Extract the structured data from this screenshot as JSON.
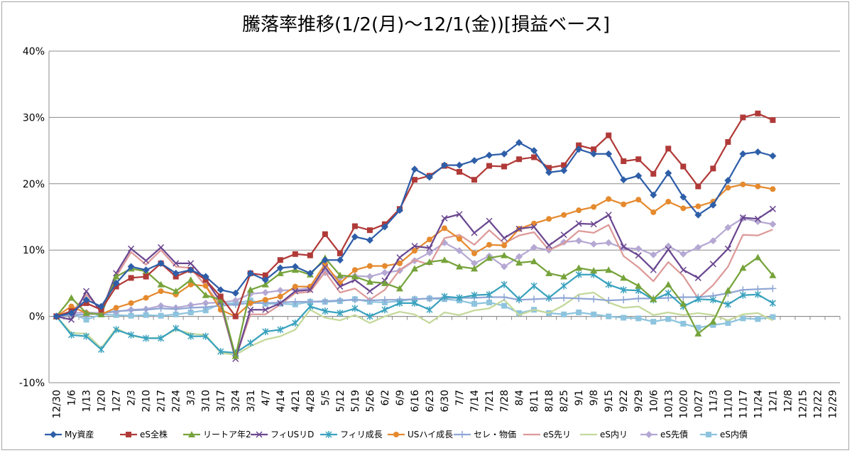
{
  "chart_data": {
    "type": "line",
    "title": "騰落率推移(1/2(月)～12/1(金))[損益ベース]",
    "xlabel": "",
    "ylabel": "",
    "ylim": [
      -10,
      40
    ],
    "yticks": [
      -10,
      0,
      10,
      20,
      30,
      40
    ],
    "ytick_labels": [
      "-10%",
      "0%",
      "10%",
      "20%",
      "30%",
      "40%"
    ],
    "grid": true,
    "legend_position": "bottom",
    "x_tick_labels": [
      "12/30",
      "1/6",
      "1/13",
      "1/20",
      "1/27",
      "2/3",
      "2/10",
      "2/17",
      "2/24",
      "3/3",
      "3/10",
      "3/17",
      "3/24",
      "3/31",
      "4/7",
      "4/14",
      "4/21",
      "4/28",
      "5/5",
      "5/12",
      "5/19",
      "5/26",
      "6/2",
      "6/9",
      "6/16",
      "6/23",
      "6/30",
      "7/7",
      "7/14",
      "7/21",
      "7/28",
      "8/4",
      "8/11",
      "8/18",
      "8/25",
      "9/1",
      "9/8",
      "9/15",
      "9/22",
      "9/29",
      "10/6",
      "10/13",
      "10/20",
      "10/27",
      "11/3",
      "11/10",
      "11/17",
      "11/24",
      "12/1",
      "12/8",
      "12/15",
      "12/22",
      "12/29"
    ],
    "series": [
      {
        "name": "My資産",
        "color": "#2e5ea8",
        "marker": "diamond",
        "values": [
          0,
          0.5,
          2.5,
          1.5,
          5,
          7.5,
          7,
          8,
          6.5,
          7,
          6,
          4,
          3.5,
          6.5,
          5.5,
          7.3,
          7.5,
          6.5,
          8.5,
          8.5,
          12,
          11.5,
          13.5,
          16,
          22.2,
          21,
          22.8,
          22.8,
          23.5,
          24.3,
          24.5,
          26.2,
          25,
          21.7,
          22,
          25.2,
          24.5,
          24.5,
          20.6,
          21.2,
          18.3,
          21.6,
          18,
          15.3,
          16.8,
          20.5,
          24.5,
          24.8,
          24.2
        ]
      },
      {
        "name": "eS全株",
        "color": "#b03a38",
        "marker": "square",
        "values": [
          0,
          0.8,
          2,
          1,
          4.5,
          5.8,
          6,
          8,
          6,
          7,
          5.5,
          3,
          0,
          6.5,
          6.2,
          8.5,
          9.4,
          9.2,
          12.4,
          9.5,
          13.6,
          13,
          13.9,
          16.2,
          20.6,
          21.2,
          22.7,
          21.8,
          20.6,
          22.7,
          22.6,
          23.7,
          24,
          22.4,
          22.8,
          25.8,
          25.2,
          27.3,
          23.4,
          23.7,
          21.5,
          25.3,
          22.6,
          19.6,
          22.3,
          26.3,
          30,
          30.6,
          29.6
        ]
      },
      {
        "name": "リートア年2",
        "color": "#76a33b",
        "marker": "triangle",
        "values": [
          0,
          2.8,
          0.5,
          0.3,
          6,
          7.2,
          6.8,
          4.8,
          3.8,
          5.5,
          3.2,
          2.5,
          -6,
          4,
          4.8,
          6.5,
          7,
          6.3,
          8.8,
          6.2,
          6,
          5.2,
          5,
          4.2,
          7.2,
          8.2,
          8.5,
          7.5,
          7.2,
          8.8,
          9.2,
          8.1,
          8.3,
          6.5,
          6,
          7.3,
          6.9,
          7,
          5.8,
          4.6,
          2.6,
          4.8,
          1.9,
          -2.6,
          -0.8,
          3.9,
          7.3,
          8.9,
          6.2
        ]
      },
      {
        "name": "フィUSリD",
        "color": "#6a4790",
        "marker": "x",
        "values": [
          0,
          -0.5,
          3.8,
          0.6,
          6.5,
          10.2,
          8.4,
          10.4,
          8,
          8,
          5.5,
          2.2,
          -6.4,
          1,
          1,
          2,
          3.8,
          4,
          7.4,
          4.5,
          5.5,
          3.8,
          5.4,
          8.9,
          10.6,
          10.3,
          14.8,
          15.4,
          12.6,
          14.4,
          11.8,
          13.2,
          13.5,
          10.7,
          12.3,
          14,
          13.9,
          15.3,
          10.5,
          9.2,
          7,
          10.1,
          7,
          5.8,
          7.9,
          10.2,
          14.9,
          14.7,
          16.2
        ]
      },
      {
        "name": "フィリ成長",
        "color": "#3aa2be",
        "marker": "asterisk",
        "values": [
          0,
          -2.8,
          -3,
          -5,
          -2,
          -2.8,
          -3.3,
          -3.3,
          -1.8,
          -3,
          -3,
          -5.3,
          -5.5,
          -4,
          -2.3,
          -2,
          -1,
          1.5,
          0.8,
          0.5,
          1.2,
          0,
          1,
          2,
          2,
          1,
          3,
          2.8,
          3.2,
          3.3,
          4.8,
          2.6,
          4.6,
          2.8,
          4.6,
          6.3,
          6.3,
          4.8,
          4,
          3.9,
          2.5,
          3.5,
          1.5,
          2.6,
          2.5,
          1.8,
          3.2,
          3.3,
          2
        ]
      },
      {
        "name": "USハイ成長",
        "color": "#e58a2e",
        "marker": "circle",
        "values": [
          0,
          1.5,
          0.5,
          0.3,
          1.3,
          2,
          2.8,
          3.8,
          3.3,
          4.8,
          4.6,
          1,
          0,
          2,
          2.5,
          3,
          4.5,
          4.5,
          7.9,
          5,
          7,
          7.6,
          7.6,
          8,
          9.9,
          11.6,
          13.3,
          11.7,
          9.5,
          10.8,
          10.7,
          13.2,
          14,
          14.7,
          15.3,
          16,
          16.5,
          17.7,
          16.9,
          17.6,
          15.7,
          17.3,
          16.3,
          16.6,
          17.3,
          19.4,
          19.9,
          19.6,
          19.2
        ]
      },
      {
        "name": "セレ・物価",
        "color": "#8fa6d4",
        "marker": "plus",
        "values": [
          0,
          0.2,
          0.3,
          0.4,
          0.8,
          0.9,
          1,
          1.2,
          1.1,
          1.3,
          1.4,
          1.6,
          1.8,
          2,
          2,
          2.1,
          2.2,
          2.2,
          2.3,
          2.4,
          2.5,
          2.4,
          2.5,
          2.5,
          2.6,
          2.7,
          2.8,
          2.8,
          2.8,
          2.9,
          2.9,
          2.5,
          2.6,
          2.7,
          2.8,
          2.7,
          2.6,
          2.4,
          2.5,
          2.7,
          2.7,
          2.8,
          2.9,
          2.9,
          3.1,
          3.5,
          4,
          4.1,
          4.2
        ]
      },
      {
        "name": "eS先リ",
        "color": "#dc9a98",
        "marker": "none",
        "values": [
          0,
          0.5,
          3.3,
          1,
          6,
          9.7,
          7.8,
          10,
          7.5,
          7.3,
          4.6,
          1.7,
          -6.3,
          0.3,
          0.3,
          1.8,
          3.5,
          3.7,
          6.7,
          3.6,
          4.2,
          2.5,
          4,
          7,
          8.5,
          7.8,
          11.8,
          12.3,
          10.8,
          13,
          11,
          12.2,
          12.7,
          10,
          11,
          12.9,
          12.6,
          13.8,
          9.1,
          7.4,
          5.3,
          8.2,
          6.1,
          2.7,
          4.7,
          7.5,
          12.3,
          12.2,
          13.1
        ]
      },
      {
        "name": "eS内リ",
        "color": "#c4d89a",
        "marker": "none",
        "values": [
          0,
          -2.5,
          -2.6,
          -4.8,
          -1.8,
          -2.9,
          -3.3,
          -3.2,
          -2,
          -2.6,
          -2.8,
          -5.5,
          -5.8,
          -4.5,
          -3.5,
          -3,
          -2,
          1,
          -0.2,
          -0.6,
          0.2,
          -1,
          0,
          0.7,
          0.3,
          -1,
          0.6,
          0.2,
          0.9,
          1.2,
          2.5,
          0.2,
          1,
          0.5,
          1.7,
          3.3,
          3.6,
          2.1,
          1.3,
          1.5,
          0.2,
          0.6,
          0.2,
          0.5,
          0.2,
          -0.6,
          0.3,
          0.5,
          -0.6
        ]
      },
      {
        "name": "eS先債",
        "color": "#b5a8d3",
        "marker": "diamond",
        "values": [
          0,
          0.5,
          0.6,
          0.5,
          0.7,
          1,
          1.1,
          1.6,
          1.3,
          1.7,
          2,
          2.1,
          2.4,
          3.4,
          3.6,
          3.9,
          4,
          4.3,
          6.6,
          5.8,
          6.1,
          6,
          6.6,
          6.9,
          8.4,
          9.6,
          11.1,
          9.9,
          8,
          9.1,
          7.5,
          9,
          10.4,
          10,
          11.2,
          11.4,
          10.9,
          11.1,
          10.3,
          10.2,
          9.3,
          10.6,
          9.4,
          10.4,
          11.4,
          13.4,
          14.8,
          14.3,
          13.9
        ]
      },
      {
        "name": "eS内債",
        "color": "#8ec4de",
        "marker": "square",
        "values": [
          0,
          0.5,
          -0.5,
          0.3,
          0.2,
          0.1,
          0.2,
          0.1,
          0.3,
          0.6,
          0.9,
          1.9,
          2,
          2.4,
          1.9,
          1.9,
          1.8,
          2.2,
          2.2,
          2.3,
          2.6,
          2.2,
          2.1,
          2.3,
          2.6,
          2.7,
          2.6,
          2.4,
          1.9,
          2.1,
          1.6,
          0.5,
          1,
          0.5,
          0.3,
          0.6,
          0.3,
          0,
          -0.2,
          -0.3,
          -0.8,
          -0.4,
          -1.1,
          -1.7,
          -1.3,
          -1,
          -0.3,
          -0.4,
          -0.1
        ]
      }
    ]
  }
}
